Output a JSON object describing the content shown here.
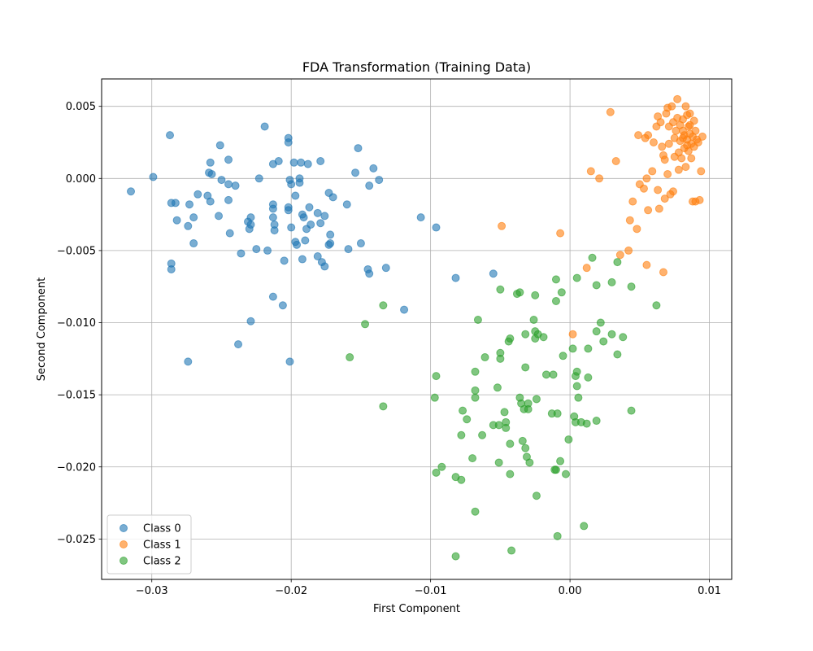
{
  "chart_data": {
    "type": "scatter",
    "title": "FDA Transformation (Training Data)",
    "xlabel": "First Component",
    "ylabel": "Second Component",
    "xlim": [
      -0.0336,
      0.0116
    ],
    "ylim": [
      -0.0278,
      0.0069
    ],
    "grid": true,
    "legend_position": "lower-left",
    "x_ticks": [
      -0.03,
      -0.02,
      -0.01,
      0.0,
      0.01
    ],
    "x_tick_labels": [
      "−0.03",
      "−0.02",
      "−0.01",
      "0.00",
      "0.01"
    ],
    "y_ticks": [
      0.005,
      0.0,
      -0.005,
      -0.01,
      -0.015,
      -0.02,
      -0.025
    ],
    "y_tick_labels": [
      "0.005",
      "0.000",
      "−0.005",
      "−0.010",
      "−0.015",
      "−0.020",
      "−0.025"
    ],
    "series": [
      {
        "name": "Class 0",
        "color": "#1f77b4",
        "points": [
          [
            -0.0315,
            -0.0009
          ],
          [
            -0.0299,
            0.0001
          ],
          [
            -0.0287,
            0.003
          ],
          [
            -0.0286,
            -0.0017
          ],
          [
            -0.0283,
            -0.0017
          ],
          [
            -0.0282,
            -0.0029
          ],
          [
            -0.0286,
            -0.0059
          ],
          [
            -0.0286,
            -0.0063
          ],
          [
            -0.0274,
            -0.0033
          ],
          [
            -0.0273,
            -0.0018
          ],
          [
            -0.027,
            -0.0027
          ],
          [
            -0.027,
            -0.0045
          ],
          [
            -0.0267,
            -0.0011
          ],
          [
            -0.0274,
            -0.0127
          ],
          [
            -0.026,
            -0.0012
          ],
          [
            -0.0258,
            0.0011
          ],
          [
            -0.0259,
            0.0004
          ],
          [
            -0.0257,
            0.0003
          ],
          [
            -0.0258,
            -0.0016
          ],
          [
            -0.0252,
            -0.0026
          ],
          [
            -0.0251,
            0.0023
          ],
          [
            -0.025,
            -0.0001
          ],
          [
            -0.0245,
            0.0013
          ],
          [
            -0.0245,
            -0.0004
          ],
          [
            -0.0245,
            -0.0015
          ],
          [
            -0.0244,
            -0.0038
          ],
          [
            -0.024,
            -0.0005
          ],
          [
            -0.0238,
            -0.0115
          ],
          [
            -0.0236,
            -0.0052
          ],
          [
            -0.0231,
            -0.003
          ],
          [
            -0.0229,
            -0.0027
          ],
          [
            -0.023,
            -0.0035
          ],
          [
            -0.0229,
            -0.0032
          ],
          [
            -0.0229,
            -0.0099
          ],
          [
            -0.0225,
            -0.0049
          ],
          [
            -0.0223,
            0.0
          ],
          [
            -0.0219,
            0.0036
          ],
          [
            -0.0217,
            -0.005
          ],
          [
            -0.0213,
            0.001
          ],
          [
            -0.0213,
            -0.0018
          ],
          [
            -0.0213,
            -0.0021
          ],
          [
            -0.0213,
            -0.0027
          ],
          [
            -0.0212,
            -0.0032
          ],
          [
            -0.0212,
            -0.0036
          ],
          [
            -0.0213,
            -0.0082
          ],
          [
            -0.0209,
            0.0012
          ],
          [
            -0.0206,
            -0.0088
          ],
          [
            -0.0205,
            -0.0057
          ],
          [
            -0.0202,
            0.0028
          ],
          [
            -0.0202,
            0.0025
          ],
          [
            -0.0201,
            -0.0001
          ],
          [
            -0.0202,
            -0.002
          ],
          [
            -0.0202,
            -0.0022
          ],
          [
            -0.02,
            -0.0034
          ],
          [
            -0.0201,
            -0.0127
          ],
          [
            -0.02,
            -0.0004
          ],
          [
            -0.0198,
            0.0011
          ],
          [
            -0.0197,
            -0.0044
          ],
          [
            -0.0196,
            -0.0046
          ],
          [
            -0.0197,
            -0.0012
          ],
          [
            -0.0194,
            0.0
          ],
          [
            -0.0194,
            -0.0003
          ],
          [
            -0.0193,
            0.0011
          ],
          [
            -0.0192,
            -0.0056
          ],
          [
            -0.0192,
            -0.0025
          ],
          [
            -0.0191,
            -0.0027
          ],
          [
            -0.019,
            -0.0043
          ],
          [
            -0.0189,
            -0.0035
          ],
          [
            -0.0188,
            0.001
          ],
          [
            -0.0187,
            -0.002
          ],
          [
            -0.0186,
            -0.0032
          ],
          [
            -0.0181,
            -0.0054
          ],
          [
            -0.0181,
            -0.0024
          ],
          [
            -0.0179,
            0.0012
          ],
          [
            -0.0179,
            -0.0031
          ],
          [
            -0.0178,
            -0.0058
          ],
          [
            -0.0176,
            -0.0061
          ],
          [
            -0.0176,
            -0.0026
          ],
          [
            -0.0173,
            -0.001
          ],
          [
            -0.0173,
            -0.0046
          ],
          [
            -0.0172,
            -0.0045
          ],
          [
            -0.0172,
            -0.0039
          ],
          [
            -0.017,
            -0.0013
          ],
          [
            -0.016,
            -0.0018
          ],
          [
            -0.0159,
            -0.0049
          ],
          [
            -0.0154,
            0.0004
          ],
          [
            -0.0152,
            0.0021
          ],
          [
            -0.015,
            -0.0045
          ],
          [
            -0.0145,
            -0.0063
          ],
          [
            -0.0144,
            -0.0066
          ],
          [
            -0.0144,
            -0.0005
          ],
          [
            -0.0141,
            0.0007
          ],
          [
            -0.0137,
            -0.0001
          ],
          [
            -0.0132,
            -0.0062
          ],
          [
            -0.0119,
            -0.0091
          ],
          [
            -0.0107,
            -0.0027
          ],
          [
            -0.0096,
            -0.0034
          ],
          [
            -0.0082,
            -0.0069
          ],
          [
            -0.0055,
            -0.0066
          ]
        ]
      },
      {
        "name": "Class 1",
        "color": "#ff7f0e",
        "points": [
          [
            -0.0049,
            -0.0033
          ],
          [
            -0.0007,
            -0.0038
          ],
          [
            0.0002,
            -0.0108
          ],
          [
            0.0012,
            -0.0062
          ],
          [
            0.0015,
            0.0005
          ],
          [
            0.0021,
            0.0
          ],
          [
            0.0029,
            0.0046
          ],
          [
            0.0033,
            0.0012
          ],
          [
            0.0036,
            -0.0053
          ],
          [
            0.0042,
            -0.005
          ],
          [
            0.0043,
            -0.0029
          ],
          [
            0.0045,
            -0.0016
          ],
          [
            0.0048,
            -0.0035
          ],
          [
            0.0049,
            0.003
          ],
          [
            0.005,
            -0.0004
          ],
          [
            0.0053,
            -0.0007
          ],
          [
            0.0054,
            0.0028
          ],
          [
            0.0055,
            -0.006
          ],
          [
            0.0055,
            0.0
          ],
          [
            0.0056,
            0.003
          ],
          [
            0.0056,
            -0.0022
          ],
          [
            0.0059,
            0.0005
          ],
          [
            0.006,
            0.0025
          ],
          [
            0.0062,
            0.0036
          ],
          [
            0.0063,
            0.0043
          ],
          [
            0.0063,
            -0.0008
          ],
          [
            0.0064,
            -0.0021
          ],
          [
            0.0065,
            0.0039
          ],
          [
            0.0066,
            0.0022
          ],
          [
            0.0067,
            0.0016
          ],
          [
            0.0067,
            -0.0065
          ],
          [
            0.0068,
            0.0013
          ],
          [
            0.0068,
            -0.0014
          ],
          [
            0.0069,
            0.0045
          ],
          [
            0.007,
            0.0049
          ],
          [
            0.007,
            0.0003
          ],
          [
            0.0071,
            0.0036
          ],
          [
            0.0071,
            0.0024
          ],
          [
            0.0072,
            -0.0011
          ],
          [
            0.0073,
            0.005
          ],
          [
            0.0074,
            0.0039
          ],
          [
            0.0074,
            -0.0009
          ],
          [
            0.0075,
            0.0028
          ],
          [
            0.0075,
            0.0015
          ],
          [
            0.0076,
            0.0033
          ],
          [
            0.0077,
            0.0055
          ],
          [
            0.0077,
            0.0042
          ],
          [
            0.0078,
            0.0018
          ],
          [
            0.0078,
            0.0006
          ],
          [
            0.0079,
            0.0037
          ],
          [
            0.0079,
            0.0026
          ],
          [
            0.008,
            0.0014
          ],
          [
            0.0081,
            0.0041
          ],
          [
            0.0081,
            0.0033
          ],
          [
            0.0082,
            0.0021
          ],
          [
            0.0082,
            0.003
          ],
          [
            0.0083,
            0.005
          ],
          [
            0.0083,
            0.0008
          ],
          [
            0.0084,
            0.0044
          ],
          [
            0.0084,
            0.0027
          ],
          [
            0.0085,
            0.0036
          ],
          [
            0.0085,
            0.0019
          ],
          [
            0.0086,
            0.0031
          ],
          [
            0.0086,
            0.0045
          ],
          [
            0.0087,
            0.0024
          ],
          [
            0.0087,
            0.0014
          ],
          [
            0.0088,
            0.0029
          ],
          [
            0.0088,
            -0.0016
          ],
          [
            0.0089,
            0.004
          ],
          [
            0.0089,
            0.0022
          ],
          [
            0.009,
            0.0033
          ],
          [
            0.009,
            -0.0016
          ],
          [
            0.0091,
            0.0027
          ],
          [
            0.0092,
            0.0025
          ],
          [
            0.0093,
            -0.0015
          ],
          [
            0.0094,
            0.0005
          ],
          [
            0.0095,
            0.0029
          ],
          [
            0.0084,
            0.0023
          ],
          [
            0.0086,
            0.0037
          ],
          [
            0.0081,
            0.0028
          ]
        ]
      },
      {
        "name": "Class 2",
        "color": "#2ca02c",
        "points": [
          [
            -0.0158,
            -0.0124
          ],
          [
            -0.0147,
            -0.0101
          ],
          [
            -0.0134,
            -0.0088
          ],
          [
            -0.0134,
            -0.0158
          ],
          [
            -0.0097,
            -0.0152
          ],
          [
            -0.0096,
            -0.0137
          ],
          [
            -0.0096,
            -0.0204
          ],
          [
            -0.0092,
            -0.02
          ],
          [
            -0.0082,
            -0.0207
          ],
          [
            -0.0082,
            -0.0262
          ],
          [
            -0.0078,
            -0.0209
          ],
          [
            -0.0078,
            -0.0178
          ],
          [
            -0.0077,
            -0.0161
          ],
          [
            -0.0074,
            -0.0167
          ],
          [
            -0.007,
            -0.0194
          ],
          [
            -0.0068,
            -0.0134
          ],
          [
            -0.0068,
            -0.0147
          ],
          [
            -0.0068,
            -0.0152
          ],
          [
            -0.0068,
            -0.0231
          ],
          [
            -0.0066,
            -0.0098
          ],
          [
            -0.0063,
            -0.0178
          ],
          [
            -0.0061,
            -0.0124
          ],
          [
            -0.0055,
            -0.0171
          ],
          [
            -0.0052,
            -0.0145
          ],
          [
            -0.0051,
            -0.0197
          ],
          [
            -0.0051,
            -0.0171
          ],
          [
            -0.005,
            -0.0121
          ],
          [
            -0.005,
            -0.0125
          ],
          [
            -0.005,
            -0.0077
          ],
          [
            -0.0047,
            -0.0162
          ],
          [
            -0.0046,
            -0.0169
          ],
          [
            -0.0046,
            -0.0173
          ],
          [
            -0.0044,
            -0.0113
          ],
          [
            -0.0043,
            -0.0111
          ],
          [
            -0.0043,
            -0.0184
          ],
          [
            -0.0043,
            -0.0205
          ],
          [
            -0.0042,
            -0.0258
          ],
          [
            -0.0038,
            -0.008
          ],
          [
            -0.0036,
            -0.0079
          ],
          [
            -0.0036,
            -0.0152
          ],
          [
            -0.0035,
            -0.0156
          ],
          [
            -0.0034,
            -0.0182
          ],
          [
            -0.0033,
            -0.016
          ],
          [
            -0.0032,
            -0.0108
          ],
          [
            -0.0032,
            -0.0131
          ],
          [
            -0.0032,
            -0.0187
          ],
          [
            -0.0031,
            -0.0193
          ],
          [
            -0.003,
            -0.016
          ],
          [
            -0.003,
            -0.0156
          ],
          [
            -0.0029,
            -0.0197
          ],
          [
            -0.0026,
            -0.0098
          ],
          [
            -0.0025,
            -0.0081
          ],
          [
            -0.0025,
            -0.0106
          ],
          [
            -0.0025,
            -0.0111
          ],
          [
            -0.0024,
            -0.0153
          ],
          [
            -0.0024,
            -0.022
          ],
          [
            -0.0023,
            -0.0108
          ],
          [
            -0.0019,
            -0.011
          ],
          [
            -0.0017,
            -0.0136
          ],
          [
            -0.0013,
            -0.0163
          ],
          [
            -0.0012,
            -0.0136
          ],
          [
            -0.0011,
            -0.0202
          ],
          [
            -0.001,
            -0.0202
          ],
          [
            -0.001,
            -0.0085
          ],
          [
            -0.001,
            -0.007
          ],
          [
            -0.0009,
            -0.0163
          ],
          [
            -0.0009,
            -0.0248
          ],
          [
            -0.0007,
            -0.0196
          ],
          [
            -0.0006,
            -0.0079
          ],
          [
            -0.0005,
            -0.0123
          ],
          [
            -0.0003,
            -0.0205
          ],
          [
            -0.0001,
            -0.0181
          ],
          [
            0.0002,
            -0.0118
          ],
          [
            0.0003,
            -0.0165
          ],
          [
            0.0004,
            -0.0169
          ],
          [
            0.0004,
            -0.0137
          ],
          [
            0.0005,
            -0.0134
          ],
          [
            0.0005,
            -0.0069
          ],
          [
            0.0005,
            -0.0144
          ],
          [
            0.0006,
            -0.0152
          ],
          [
            0.0008,
            -0.0169
          ],
          [
            0.001,
            -0.0241
          ],
          [
            0.0012,
            -0.017
          ],
          [
            0.0013,
            -0.0118
          ],
          [
            0.0013,
            -0.0138
          ],
          [
            0.0016,
            -0.0055
          ],
          [
            0.0019,
            -0.0168
          ],
          [
            0.0019,
            -0.0106
          ],
          [
            0.0019,
            -0.0074
          ],
          [
            0.0022,
            -0.01
          ],
          [
            0.0024,
            -0.0113
          ],
          [
            0.003,
            -0.0072
          ],
          [
            0.003,
            -0.0108
          ],
          [
            0.0034,
            -0.0122
          ],
          [
            0.0034,
            -0.0058
          ],
          [
            0.0038,
            -0.011
          ],
          [
            0.0044,
            -0.0075
          ],
          [
            0.0044,
            -0.0161
          ],
          [
            0.0062,
            -0.0088
          ]
        ]
      }
    ]
  }
}
